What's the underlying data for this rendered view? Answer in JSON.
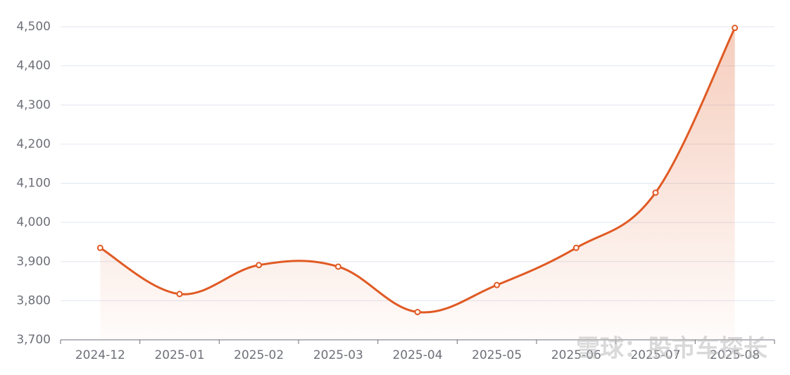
{
  "chart_data": {
    "type": "line",
    "categories": [
      "2024-12",
      "2025-01",
      "2025-02",
      "2025-03",
      "2025-04",
      "2025-05",
      "2025-06",
      "2025-07",
      "2025-08"
    ],
    "values": [
      3935,
      3817,
      3891,
      3887,
      3771,
      3840,
      3935,
      4076,
      4497
    ],
    "color": "#e05a24",
    "ylim": [
      3700,
      4500
    ],
    "yticks": [
      {
        "value": 3700,
        "label": "3,700"
      },
      {
        "value": 3800,
        "label": "3,800"
      },
      {
        "value": 3900,
        "label": "3,900"
      },
      {
        "value": 4000,
        "label": "4,000"
      },
      {
        "value": 4100,
        "label": "4,100"
      },
      {
        "value": 4200,
        "label": "4,200"
      },
      {
        "value": 4300,
        "label": "4,300"
      },
      {
        "value": 4400,
        "label": "4,400"
      },
      {
        "value": 4500,
        "label": "4,500"
      }
    ],
    "grid": true,
    "area": true,
    "watermark": "雪球：股市车探长"
  }
}
